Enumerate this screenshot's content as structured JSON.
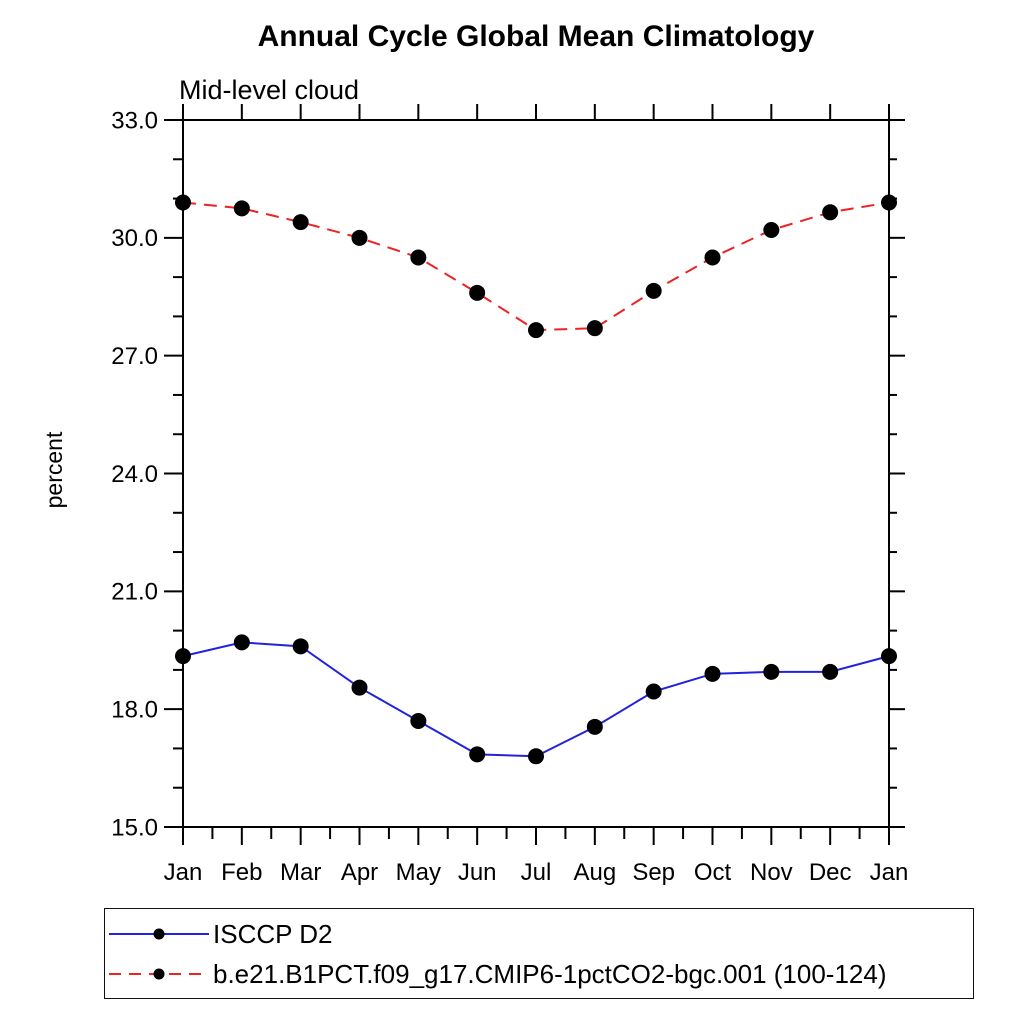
{
  "page": {
    "title": "Annual Cycle Global Mean Climatology",
    "subtitle": "Mid-level cloud"
  },
  "chart_data": {
    "type": "line",
    "title": "Annual Cycle Global Mean Climatology",
    "subtitle": "Mid-level cloud",
    "xlabel": "",
    "ylabel": "percent",
    "categories": [
      "Jan",
      "Feb",
      "Mar",
      "Apr",
      "May",
      "Jun",
      "Jul",
      "Aug",
      "Sep",
      "Oct",
      "Nov",
      "Dec",
      "Jan"
    ],
    "ylim": [
      15.0,
      33.0
    ],
    "ytick_major": [
      15.0,
      18.0,
      21.0,
      24.0,
      27.0,
      30.0,
      33.0
    ],
    "ytick_labels": [
      "15.0",
      "18.0",
      "21.0",
      "24.0",
      "27.0",
      "30.0",
      "33.0"
    ],
    "ytick_minor_step": 1.0,
    "xtick_minor": "half-month",
    "grid": false,
    "legend_position": "bottom-left-box",
    "series": [
      {
        "name": "ISCCP D2",
        "color": "#2222dd",
        "line_style": "solid",
        "marker": "circle",
        "marker_color": "#000000",
        "values": [
          19.35,
          19.7,
          19.6,
          18.55,
          17.7,
          16.85,
          16.8,
          17.55,
          18.45,
          18.9,
          18.95,
          18.95,
          19.35
        ]
      },
      {
        "name": "b.e21.B1PCT.f09_g17.CMIP6-1pctCO2-bgc.001 (100-124)",
        "color": "#ee2222",
        "line_style": "dashed",
        "marker": "circle",
        "marker_color": "#000000",
        "values": [
          30.9,
          30.75,
          30.4,
          30.0,
          29.5,
          28.6,
          27.65,
          27.7,
          28.65,
          29.5,
          30.2,
          30.65,
          30.9
        ]
      }
    ]
  },
  "colors": {
    "background": "#ffffff",
    "axis": "#000000",
    "text": "#000000",
    "series_isccp": "#2222dd",
    "series_model": "#ee2222",
    "marker": "#000000"
  }
}
